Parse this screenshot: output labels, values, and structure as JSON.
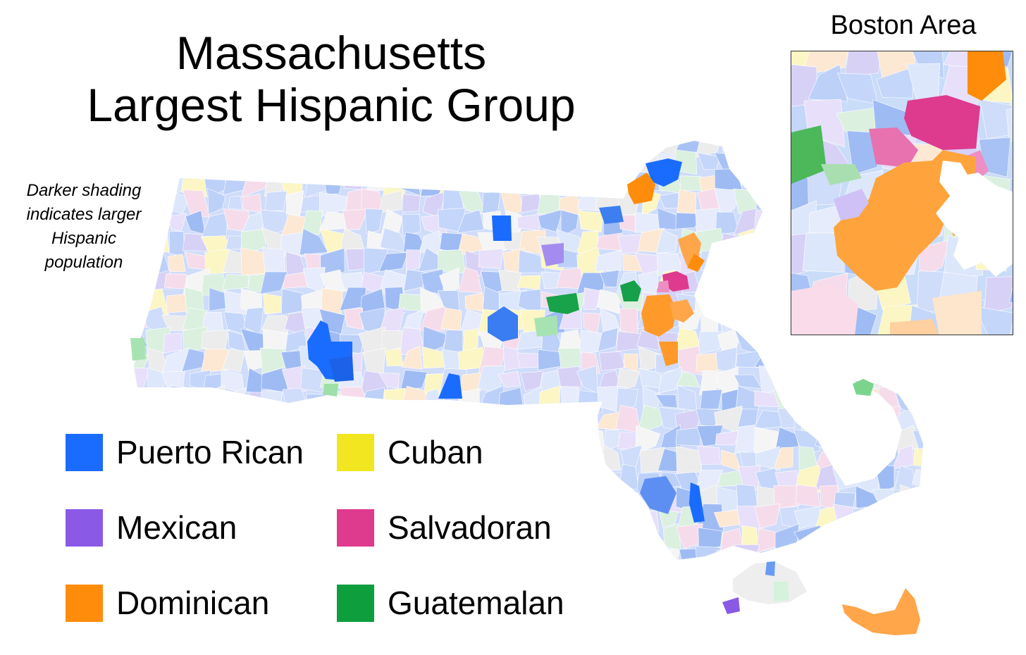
{
  "title": {
    "line1": "Massachusetts",
    "line2": "Largest Hispanic Group"
  },
  "note": {
    "line1": "Darker shading",
    "line2": "indicates larger",
    "line3": "Hispanic",
    "line4": "population"
  },
  "inset": {
    "title": "Boston Area"
  },
  "colors": {
    "puerto_rican": "#1a6cff",
    "mexican": "#8a5ae6",
    "dominican": "#ff8c0a",
    "cuban": "#f2e620",
    "salvadoran": "#de3a8e",
    "guatemalan": "#0f9e3e",
    "other": "#d9d9d9"
  },
  "legend": [
    {
      "key": "puerto_rican",
      "label": "Puerto Rican"
    },
    {
      "key": "cuban",
      "label": "Cuban"
    },
    {
      "key": "mexican",
      "label": "Mexican"
    },
    {
      "key": "salvadoran",
      "label": "Salvadoran"
    },
    {
      "key": "dominican",
      "label": "Dominican"
    },
    {
      "key": "guatemalan",
      "label": "Guatemalan"
    }
  ]
}
